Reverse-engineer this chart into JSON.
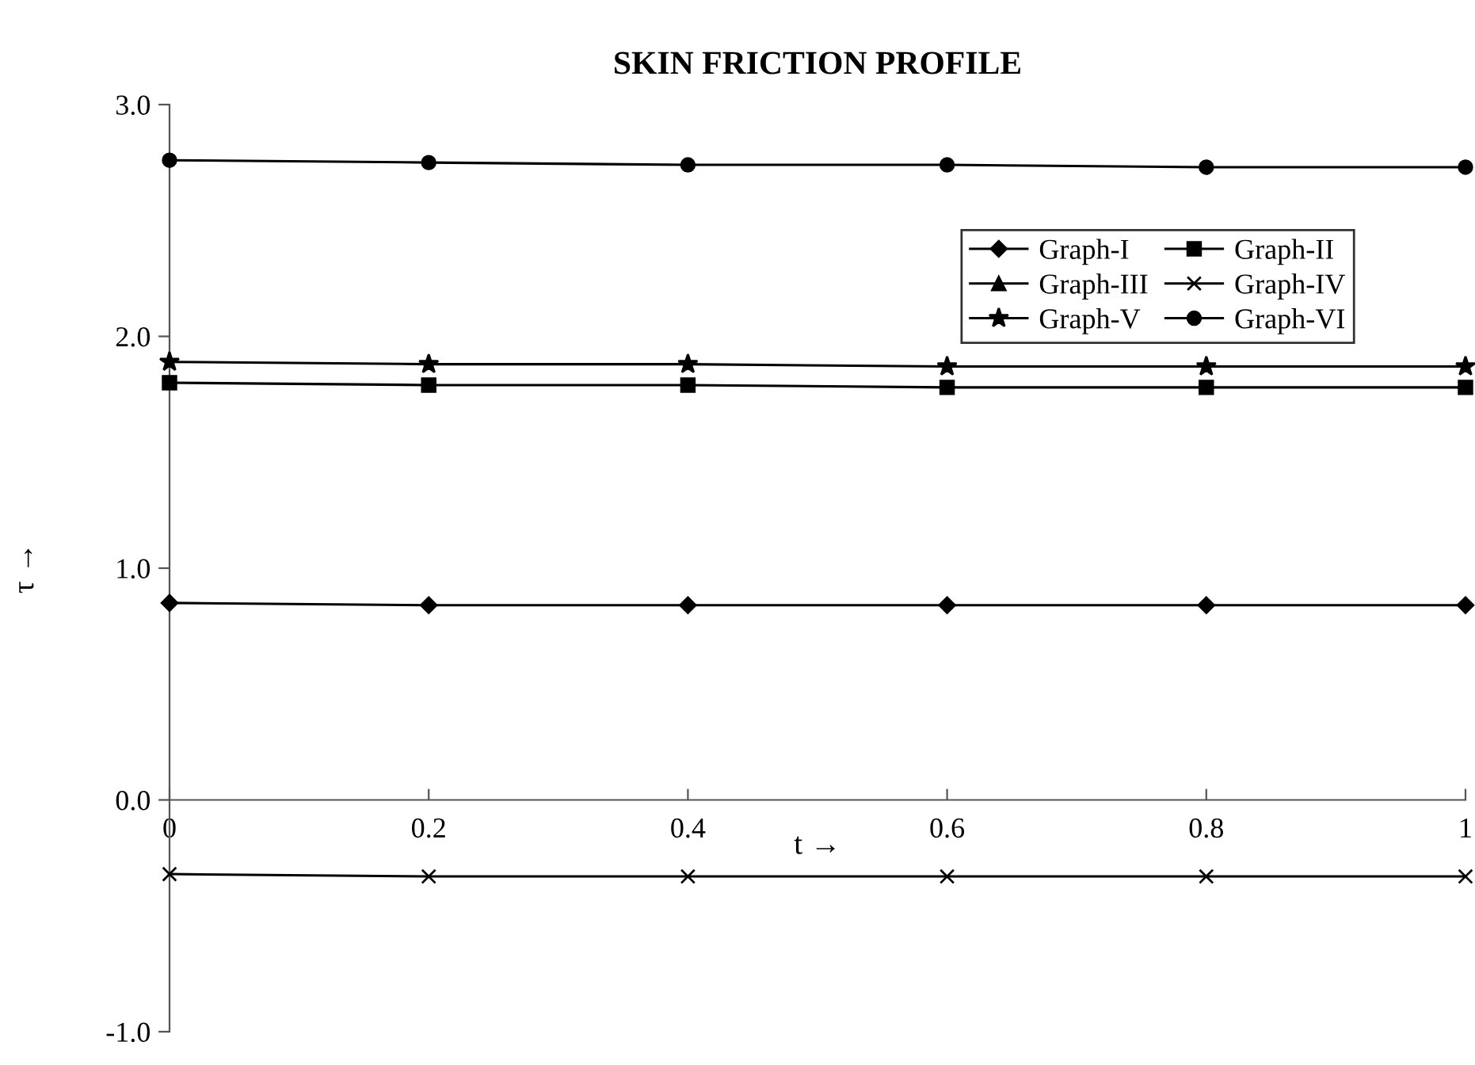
{
  "chart_data": {
    "type": "line",
    "title": "SKIN FRICTION PROFILE",
    "xlabel": "t →",
    "ylabel": "τ →",
    "x": [
      0,
      0.2,
      0.4,
      0.6,
      0.8,
      1
    ],
    "series": [
      {
        "name": "Graph-I",
        "color": "#000000",
        "marker": "diamond",
        "values": [
          0.85,
          0.84,
          0.84,
          0.84,
          0.84,
          0.84
        ]
      },
      {
        "name": "Graph-II",
        "color": "#000000",
        "marker": "square",
        "values": [
          1.8,
          1.79,
          1.79,
          1.78,
          1.78,
          1.78
        ]
      },
      {
        "name": "Graph-III",
        "color": "#000000",
        "marker": "triangle",
        "values": [
          null,
          null,
          null,
          null,
          null,
          null
        ]
      },
      {
        "name": "Graph-IV",
        "color": "#000000",
        "marker": "cross",
        "values": [
          -0.32,
          -0.33,
          -0.33,
          -0.33,
          -0.33,
          -0.33
        ]
      },
      {
        "name": "Graph-V",
        "color": "#000000",
        "marker": "star",
        "values": [
          1.89,
          1.88,
          1.88,
          1.87,
          1.87,
          1.87
        ]
      },
      {
        "name": "Graph-VI",
        "color": "#000000",
        "marker": "circle",
        "values": [
          2.76,
          2.75,
          2.74,
          2.74,
          2.73,
          2.73
        ]
      }
    ],
    "xlim": [
      0,
      1
    ],
    "xticks": [
      0,
      0.2,
      0.4,
      0.6,
      0.8,
      1
    ],
    "ylim": [
      -1,
      3
    ],
    "yticks": [
      {
        "value": -1,
        "label": "-1.0"
      },
      {
        "value": 0,
        "label": "0.0"
      },
      {
        "value": 1,
        "label": "1.0"
      },
      {
        "value": 2,
        "label": "2.0"
      },
      {
        "value": 3,
        "label": "3.0"
      }
    ],
    "grid": false,
    "legend": "top right",
    "line_style": "solid"
  }
}
